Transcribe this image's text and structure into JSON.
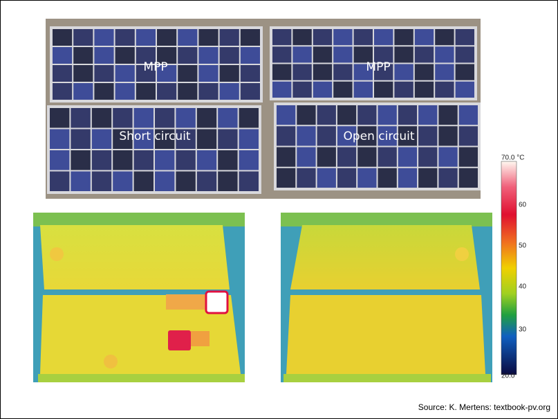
{
  "photo_labels": [
    "MPP",
    "MPP",
    "Short circuit",
    "Open circuit"
  ],
  "colorbar": {
    "max_label": "70.0 °C",
    "tick_labels": [
      "60",
      "50",
      "40",
      "30"
    ],
    "min_label": "20.0"
  },
  "source": "Source: K. Mertens: textbook-pv.org"
}
